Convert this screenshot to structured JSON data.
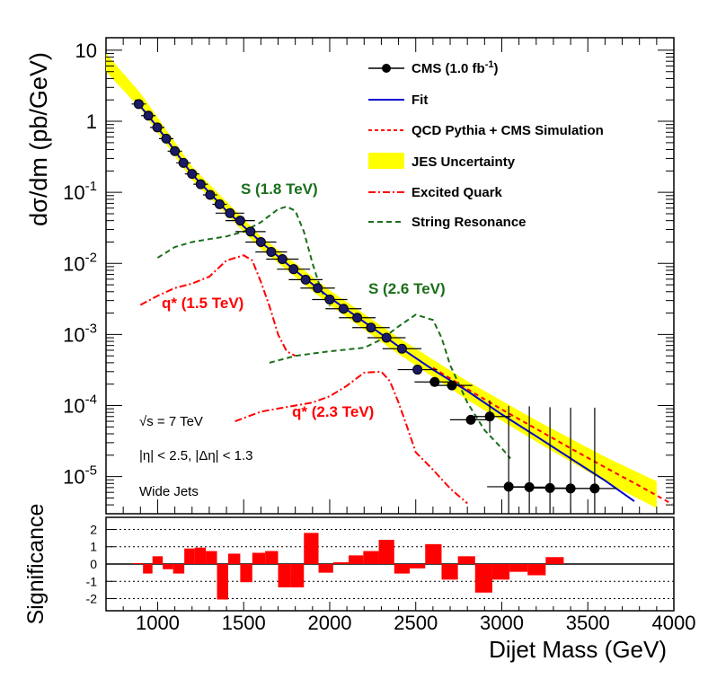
{
  "chart_data": {
    "type": "scatter",
    "main": {
      "ylabel": "dσ/dm (pb/GeV)",
      "yscale": "log",
      "ylim": [
        3e-06,
        15
      ],
      "xlim": [
        700,
        4000
      ],
      "y_tick_labels": [
        {
          "base": "10",
          "exp": "",
          "value": 10
        },
        {
          "base": "1",
          "exp": "",
          "value": 1
        },
        {
          "base": "10",
          "exp": "-1",
          "value": 0.1
        },
        {
          "base": "10",
          "exp": "-2",
          "value": 0.01
        },
        {
          "base": "10",
          "exp": "-3",
          "value": 0.001
        },
        {
          "base": "10",
          "exp": "-4",
          "value": 0.0001
        },
        {
          "base": "10",
          "exp": "-5",
          "value": 1e-05
        }
      ],
      "legend": [
        {
          "label": "CMS (1.0 fb",
          "sup": "-1",
          "close": ")",
          "style": "marker"
        },
        {
          "label": "Fit",
          "style": "line",
          "color": "#0000cc"
        },
        {
          "label": "QCD Pythia + CMS Simulation",
          "style": "dashed",
          "color": "#ff0000"
        },
        {
          "label": "JES Uncertainty",
          "style": "band",
          "color": "#ffff00"
        },
        {
          "label": "Excited Quark",
          "style": "dashdot",
          "color": "#ff0000"
        },
        {
          "label": "String Resonance",
          "style": "dashed",
          "color": "#1a6e1a"
        }
      ],
      "annotations": {
        "sqrt_s": "√s = 7 TeV",
        "eta": "|η| < 2.5, |Δη| < 1.3",
        "jets": "Wide Jets",
        "s18": "S (1.8 TeV)",
        "s26": "S (2.6 TeV)",
        "q15": "q* (1.5 TeV)",
        "q23": "q* (2.3 TeV)"
      },
      "data_points": [
        {
          "x": 890,
          "y": 1.75
        },
        {
          "x": 946,
          "y": 1.2
        },
        {
          "x": 998,
          "y": 0.82
        },
        {
          "x": 1050,
          "y": 0.57
        },
        {
          "x": 1100,
          "y": 0.38
        },
        {
          "x": 1150,
          "y": 0.26
        },
        {
          "x": 1200,
          "y": 0.182
        },
        {
          "x": 1250,
          "y": 0.13
        },
        {
          "x": 1305,
          "y": 0.092
        },
        {
          "x": 1360,
          "y": 0.068
        },
        {
          "x": 1420,
          "y": 0.051
        },
        {
          "x": 1480,
          "y": 0.04
        },
        {
          "x": 1540,
          "y": 0.028
        },
        {
          "x": 1600,
          "y": 0.02
        },
        {
          "x": 1660,
          "y": 0.0145
        },
        {
          "x": 1725,
          "y": 0.0115
        },
        {
          "x": 1790,
          "y": 0.0083
        },
        {
          "x": 1860,
          "y": 0.0059
        },
        {
          "x": 1930,
          "y": 0.0045
        },
        {
          "x": 2000,
          "y": 0.0031
        },
        {
          "x": 2080,
          "y": 0.0023
        },
        {
          "x": 2160,
          "y": 0.00172
        },
        {
          "x": 2240,
          "y": 0.00125
        },
        {
          "x": 2330,
          "y": 0.0009
        },
        {
          "x": 2420,
          "y": 0.00063
        },
        {
          "x": 2510,
          "y": 0.00032
        },
        {
          "x": 2610,
          "y": 0.000215
        },
        {
          "x": 2710,
          "y": 0.000192
        },
        {
          "x": 2820,
          "y": 6.3e-05
        },
        {
          "x": 2930,
          "y": 7e-05
        },
        {
          "x": 3040,
          "y": 7.2e-06
        },
        {
          "x": 3160,
          "y": 7.1e-06
        },
        {
          "x": 3280,
          "y": 6.9e-06
        },
        {
          "x": 3400,
          "y": 6.8e-06
        },
        {
          "x": 3540,
          "y": 6.8e-06
        }
      ],
      "fit": [
        {
          "x": 870,
          "y": 2.0
        },
        {
          "x": 1000,
          "y": 0.82
        },
        {
          "x": 1200,
          "y": 0.18
        },
        {
          "x": 1400,
          "y": 0.055
        },
        {
          "x": 1600,
          "y": 0.02
        },
        {
          "x": 1800,
          "y": 0.0079
        },
        {
          "x": 2000,
          "y": 0.0033
        },
        {
          "x": 2200,
          "y": 0.0015
        },
        {
          "x": 2400,
          "y": 0.00068
        },
        {
          "x": 2600,
          "y": 0.00032
        },
        {
          "x": 2800,
          "y": 0.00016
        },
        {
          "x": 3000,
          "y": 7.5e-05
        },
        {
          "x": 3200,
          "y": 3.7e-05
        },
        {
          "x": 3400,
          "y": 1.8e-05
        },
        {
          "x": 3600,
          "y": 8.8e-06
        },
        {
          "x": 3770,
          "y": 4.5e-06
        }
      ],
      "qcd": [
        {
          "x": 2600,
          "y": 0.00034
        },
        {
          "x": 2800,
          "y": 0.00017
        },
        {
          "x": 3000,
          "y": 8.8e-05
        },
        {
          "x": 3200,
          "y": 4.7e-05
        },
        {
          "x": 3400,
          "y": 2.5e-05
        },
        {
          "x": 3600,
          "y": 1.35e-05
        },
        {
          "x": 3800,
          "y": 7.4e-06
        },
        {
          "x": 3990,
          "y": 4.1e-06
        }
      ],
      "jes_band": [
        {
          "x": 700,
          "lo": 5.0,
          "hi": 9.0
        },
        {
          "x": 900,
          "lo": 1.5,
          "hi": 2.5
        },
        {
          "x": 1200,
          "lo": 0.15,
          "hi": 0.23
        },
        {
          "x": 1600,
          "lo": 0.016,
          "hi": 0.024
        },
        {
          "x": 2000,
          "lo": 0.0026,
          "hi": 0.0042
        },
        {
          "x": 2400,
          "lo": 0.00053,
          "hi": 0.0009
        },
        {
          "x": 2800,
          "lo": 0.00012,
          "hi": 0.00022
        },
        {
          "x": 3200,
          "lo": 3.1e-05,
          "hi": 6.2e-05
        },
        {
          "x": 3600,
          "lo": 8.5e-06,
          "hi": 1.9e-05
        },
        {
          "x": 3900,
          "lo": 3.6e-06,
          "hi": 8.6e-06
        }
      ],
      "string_18": [
        {
          "x": 1000,
          "y": 0.012
        },
        {
          "x": 1100,
          "y": 0.017
        },
        {
          "x": 1200,
          "y": 0.02
        },
        {
          "x": 1300,
          "y": 0.022
        },
        {
          "x": 1400,
          "y": 0.024
        },
        {
          "x": 1500,
          "y": 0.028
        },
        {
          "x": 1600,
          "y": 0.038
        },
        {
          "x": 1700,
          "y": 0.058
        },
        {
          "x": 1750,
          "y": 0.063
        },
        {
          "x": 1800,
          "y": 0.055
        },
        {
          "x": 1850,
          "y": 0.028
        },
        {
          "x": 1900,
          "y": 0.01
        },
        {
          "x": 1950,
          "y": 0.0042
        },
        {
          "x": 2000,
          "y": 0.0025
        }
      ],
      "string_26": [
        {
          "x": 1650,
          "y": 0.0004
        },
        {
          "x": 1800,
          "y": 0.0005
        },
        {
          "x": 2000,
          "y": 0.00058
        },
        {
          "x": 2200,
          "y": 0.00065
        },
        {
          "x": 2300,
          "y": 0.00085
        },
        {
          "x": 2400,
          "y": 0.0013
        },
        {
          "x": 2500,
          "y": 0.0019
        },
        {
          "x": 2600,
          "y": 0.0016
        },
        {
          "x": 2650,
          "y": 0.0009
        },
        {
          "x": 2700,
          "y": 0.00037
        },
        {
          "x": 2800,
          "y": 0.00011
        },
        {
          "x": 2900,
          "y": 4.5e-05
        },
        {
          "x": 3000,
          "y": 2.5e-05
        },
        {
          "x": 3050,
          "y": 1.8e-05
        }
      ],
      "qstar_15": [
        {
          "x": 900,
          "y": 0.0026
        },
        {
          "x": 1000,
          "y": 0.0035
        },
        {
          "x": 1100,
          "y": 0.0045
        },
        {
          "x": 1200,
          "y": 0.0052
        },
        {
          "x": 1300,
          "y": 0.0065
        },
        {
          "x": 1400,
          "y": 0.011
        },
        {
          "x": 1500,
          "y": 0.013
        },
        {
          "x": 1550,
          "y": 0.011
        },
        {
          "x": 1600,
          "y": 0.0055
        },
        {
          "x": 1650,
          "y": 0.0025
        },
        {
          "x": 1700,
          "y": 0.001
        },
        {
          "x": 1750,
          "y": 0.00058
        },
        {
          "x": 1800,
          "y": 0.0005
        }
      ],
      "qstar_23": [
        {
          "x": 1450,
          "y": 6e-05
        },
        {
          "x": 1600,
          "y": 8.2e-05
        },
        {
          "x": 1800,
          "y": 0.0001
        },
        {
          "x": 1900,
          "y": 0.00011
        },
        {
          "x": 2000,
          "y": 0.000135
        },
        {
          "x": 2100,
          "y": 0.00019
        },
        {
          "x": 2200,
          "y": 0.00029
        },
        {
          "x": 2300,
          "y": 0.0003
        },
        {
          "x": 2350,
          "y": 0.00022
        },
        {
          "x": 2400,
          "y": 0.00011
        },
        {
          "x": 2450,
          "y": 5e-05
        },
        {
          "x": 2500,
          "y": 2.2e-05
        },
        {
          "x": 2600,
          "y": 1.25e-05
        },
        {
          "x": 2700,
          "y": 6.8e-06
        },
        {
          "x": 2800,
          "y": 4.2e-06
        }
      ]
    },
    "ratio": {
      "ylabel": "Significance",
      "ylim": [
        -2.7,
        2.7
      ],
      "y_ticks": [
        2,
        1,
        0,
        -1,
        -2
      ],
      "y_tick_labels": [
        "2",
        "1",
        "0",
        "-1",
        "-2"
      ],
      "bars": [
        {
          "x0": 855,
          "x1": 915,
          "v": 0.05
        },
        {
          "x0": 915,
          "x1": 970,
          "v": -0.55
        },
        {
          "x0": 970,
          "x1": 1030,
          "v": 0.45
        },
        {
          "x0": 1030,
          "x1": 1090,
          "v": -0.3
        },
        {
          "x0": 1090,
          "x1": 1155,
          "v": -0.55
        },
        {
          "x0": 1155,
          "x1": 1215,
          "v": 0.9
        },
        {
          "x0": 1215,
          "x1": 1280,
          "v": 0.95
        },
        {
          "x0": 1280,
          "x1": 1345,
          "v": 0.75
        },
        {
          "x0": 1345,
          "x1": 1410,
          "v": -2.05
        },
        {
          "x0": 1410,
          "x1": 1480,
          "v": 0.6
        },
        {
          "x0": 1480,
          "x1": 1550,
          "v": -1.05
        },
        {
          "x0": 1550,
          "x1": 1625,
          "v": 0.65
        },
        {
          "x0": 1625,
          "x1": 1700,
          "v": 0.75
        },
        {
          "x0": 1700,
          "x1": 1775,
          "v": -1.35
        },
        {
          "x0": 1775,
          "x1": 1850,
          "v": -1.35
        },
        {
          "x0": 1850,
          "x1": 1935,
          "v": 1.8
        },
        {
          "x0": 1935,
          "x1": 2020,
          "v": -0.5
        },
        {
          "x0": 2020,
          "x1": 2110,
          "v": 0.1
        },
        {
          "x0": 2110,
          "x1": 2195,
          "v": 0.5
        },
        {
          "x0": 2195,
          "x1": 2285,
          "v": 0.75
        },
        {
          "x0": 2285,
          "x1": 2375,
          "v": 1.4
        },
        {
          "x0": 2375,
          "x1": 2465,
          "v": -0.55
        },
        {
          "x0": 2465,
          "x1": 2555,
          "v": -0.25
        },
        {
          "x0": 2555,
          "x1": 2650,
          "v": 1.15
        },
        {
          "x0": 2650,
          "x1": 2745,
          "v": -0.9
        },
        {
          "x0": 2745,
          "x1": 2845,
          "v": 0.45
        },
        {
          "x0": 2845,
          "x1": 2945,
          "v": -1.65
        },
        {
          "x0": 2945,
          "x1": 3045,
          "v": -0.9
        },
        {
          "x0": 3045,
          "x1": 3150,
          "v": -0.45
        },
        {
          "x0": 3150,
          "x1": 3255,
          "v": -0.65
        },
        {
          "x0": 3255,
          "x1": 3360,
          "v": 0.4
        }
      ]
    },
    "x_axis": {
      "label": "Dijet Mass (GeV)",
      "ticks": [
        1000,
        1500,
        2000,
        2500,
        3000,
        3500,
        4000
      ],
      "tick_labels": [
        "1000",
        "1500",
        "2000",
        "2500",
        "3000",
        "3500",
        "4000"
      ]
    },
    "colors": {
      "data_marker": "#1a1a66",
      "fit": "#0000cc",
      "qcd": "#ff0000",
      "jes": "#ffff00",
      "excited_quark": "#ff0000",
      "string": "#1a6e1a",
      "bars": "#ff0000"
    }
  }
}
